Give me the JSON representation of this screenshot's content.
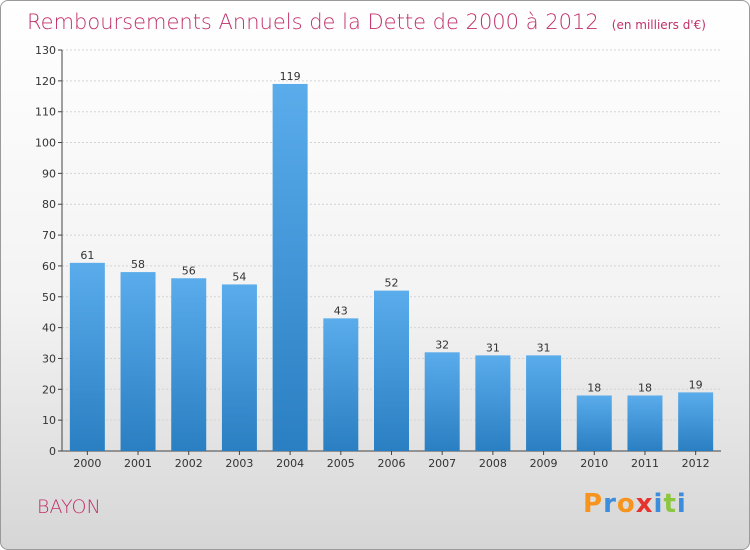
{
  "header": {
    "title": "Remboursements Annuels de la Dette de 2000 à 2012",
    "subtitle": "(en milliers d'€)"
  },
  "footer": {
    "city": "BAYON",
    "logo_letters": [
      "P",
      "r",
      "o",
      "x",
      "i",
      "t",
      "i"
    ],
    "logo_colors": [
      "#f7941d",
      "#3c8ddc",
      "#f7941d",
      "#e8322c",
      "#3c8ddc",
      "#8dc63f",
      "#3c8ddc"
    ]
  },
  "chart_data": {
    "type": "bar",
    "title": "Remboursements Annuels de la Dette de 2000 à 2012",
    "subtitle": "(en milliers d'€)",
    "categories": [
      "2000",
      "2001",
      "2002",
      "2003",
      "2004",
      "2005",
      "2006",
      "2007",
      "2008",
      "2009",
      "2010",
      "2011",
      "2012"
    ],
    "values": [
      61,
      58,
      56,
      54,
      119,
      43,
      52,
      32,
      31,
      31,
      18,
      18,
      19
    ],
    "ylim": [
      0,
      130
    ],
    "yticks": [
      0,
      10,
      20,
      30,
      40,
      50,
      60,
      70,
      80,
      90,
      100,
      110,
      120,
      130
    ],
    "grid": true,
    "legend": "none",
    "bar_color_top": "#5aaceb",
    "bar_color_bottom": "#2a7fc2"
  }
}
